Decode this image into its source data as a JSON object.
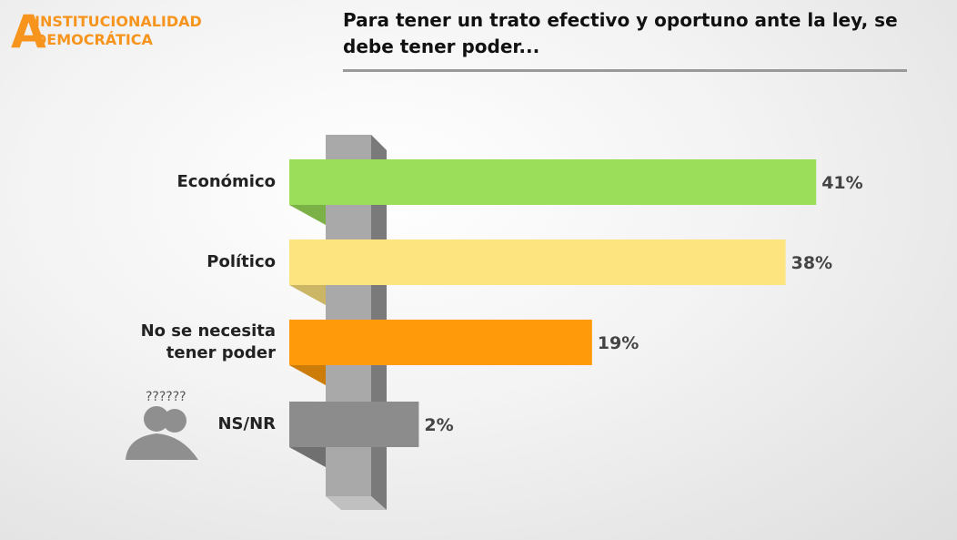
{
  "logo": {
    "letter": "A",
    "line1": "INSTITUCIONALIDAD",
    "line2": "DEMOCRÁTICA"
  },
  "icon_text": "??????",
  "chart_data": {
    "type": "bar",
    "orientation": "horizontal",
    "title": "Para tener un trato efectivo y oportuno ante la ley, se debe tener poder...",
    "categories": [
      "Económico",
      "Político",
      "No se necesita\ntener poder",
      "NS/NR"
    ],
    "values": [
      41,
      38,
      19,
      2
    ],
    "value_labels": [
      "41%",
      "38%",
      "19%",
      "2%"
    ],
    "colors": [
      "#9bde5a",
      "#fde47f",
      "#ff9b0b",
      "#8c8c8c"
    ]
  }
}
